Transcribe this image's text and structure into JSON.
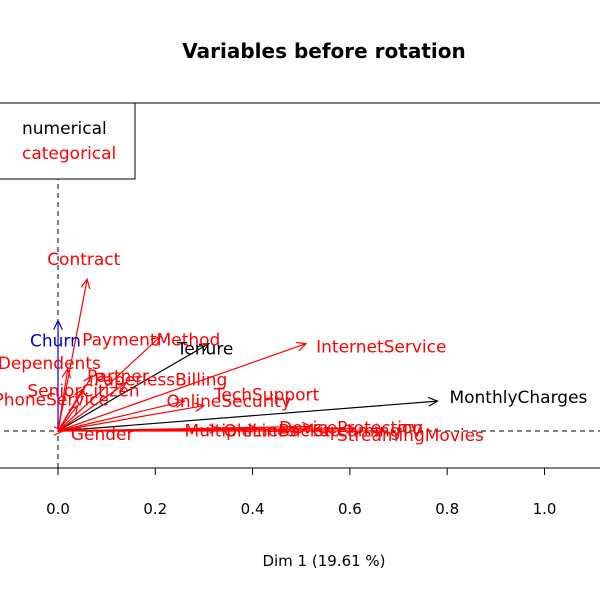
{
  "chart_data": {
    "type": "scatter",
    "title": "Variables before rotation",
    "xlabel": "Dim 1 (19.61 %)",
    "xlim": [
      -0.1,
      1.1
    ],
    "x_ticks": [
      "0.0",
      "0.2",
      "0.4",
      "0.6",
      "0.8",
      "1.0"
    ],
    "tick_values": [
      0.0,
      0.2,
      0.4,
      0.6,
      0.8,
      1.0
    ],
    "legend": {
      "position": "top-left",
      "items": [
        {
          "label": "numerical",
          "color": "#000000"
        },
        {
          "label": "categorical",
          "color": "#ff0000"
        }
      ]
    },
    "colors": {
      "numerical": "#000000",
      "categorical": "#ff0000",
      "target": "#0000cc"
    },
    "vectors": [
      {
        "name": "Contract",
        "x": 0.06,
        "y": 0.66,
        "color": "#ff0000"
      },
      {
        "name": "Churn",
        "x": 0.0,
        "y": 0.48,
        "color": "#0000cc"
      },
      {
        "name": "PaymentMethod",
        "x": 0.21,
        "y": 0.41,
        "color": "#ff0000"
      },
      {
        "name": "Tenure",
        "x": 0.31,
        "y": 0.38,
        "color": "#000000"
      },
      {
        "name": "InternetService",
        "x": 0.51,
        "y": 0.38,
        "color": "#ff0000"
      },
      {
        "name": "Dependents",
        "x": 0.02,
        "y": 0.27,
        "color": "#ff0000"
      },
      {
        "name": "Partner",
        "x": 0.07,
        "y": 0.24,
        "color": "#ff0000"
      },
      {
        "name": "PaperlessBilling",
        "x": 0.14,
        "y": 0.21,
        "color": "#ff0000"
      },
      {
        "name": "SeniorCitizen",
        "x": 0.05,
        "y": 0.18,
        "color": "#ff0000"
      },
      {
        "name": "OnlineSecurity",
        "x": 0.26,
        "y": 0.13,
        "color": "#ff0000"
      },
      {
        "name": "TechSupport",
        "x": 0.3,
        "y": 0.11,
        "color": "#ff0000"
      },
      {
        "name": "PhoneService",
        "x": 0.04,
        "y": 0.11,
        "color": "#ff0000"
      },
      {
        "name": "MonthlyCharges",
        "x": 0.78,
        "y": 0.13,
        "color": "#000000"
      },
      {
        "name": "Gender",
        "x": 0.01,
        "y": 0.0,
        "color": "#ff0000"
      },
      {
        "name": "MultipleLines",
        "x": 0.33,
        "y": 0.01,
        "color": "#ff0000"
      },
      {
        "name": "OnlineBackup",
        "x": 0.41,
        "y": 0.01,
        "color": "#ff0000"
      },
      {
        "name": "DeviceProtection",
        "x": 0.52,
        "y": 0.02,
        "color": "#ff0000"
      },
      {
        "name": "StreamingTV",
        "x": 0.61,
        "y": 0.01,
        "color": "#ff0000"
      },
      {
        "name": "StreamingMovies",
        "x": 0.67,
        "y": 0.0,
        "color": "#ff0000"
      }
    ]
  }
}
